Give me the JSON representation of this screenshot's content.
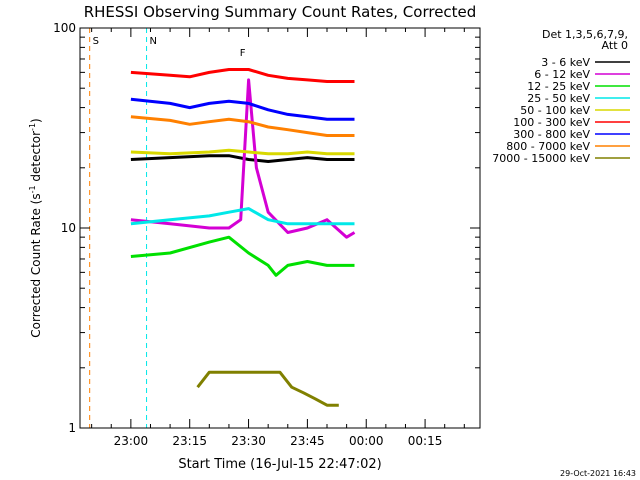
{
  "chart_data": {
    "type": "line",
    "title": "RHESSI Observing Summary Count Rates, Corrected",
    "xlabel": "Start Time (16-Jul-15 22:47:02)",
    "ylabel": "Corrected Count Rate (s",
    "ylabel_sup1": "-1",
    "ylabel_mid": " detector",
    "ylabel_sup2": "-1",
    "ylabel_end": ")",
    "y_scale": "log",
    "ylim": [
      1,
      100
    ],
    "xlim": [
      "22:47:02",
      "00:29:00"
    ],
    "y_ticks": [
      {
        "value": 1,
        "label": "1"
      },
      {
        "value": 10,
        "label": "10"
      },
      {
        "value": 100,
        "label": "100"
      }
    ],
    "x_ticks": [
      {
        "time": "23:00",
        "label": "23:00"
      },
      {
        "time": "23:15",
        "label": "23:15"
      },
      {
        "time": "23:30",
        "label": "23:30"
      },
      {
        "time": "23:45",
        "label": "23:45"
      },
      {
        "time": "00:00",
        "label": "00:00"
      },
      {
        "time": "00:15",
        "label": "00:15"
      }
    ],
    "legend_header": [
      "Det 1,3,5,6,7,9,",
      "Att 0"
    ],
    "legend_placement": "right",
    "series": [
      {
        "name": "3 - 6 keV",
        "color": "#000000",
        "x": [
          "23:00",
          "23:10",
          "23:20",
          "23:25",
          "23:30",
          "23:35",
          "23:40",
          "23:45",
          "23:50",
          "23:57"
        ],
        "y": [
          22,
          22.5,
          23,
          23,
          22,
          21.5,
          22,
          22.5,
          22,
          22
        ]
      },
      {
        "name": "6 - 12 keV",
        "color": "#d400d4",
        "x": [
          "23:00",
          "23:10",
          "23:20",
          "23:25",
          "23:28",
          "23:30",
          "23:32",
          "23:35",
          "23:40",
          "23:45",
          "23:50",
          "23:55",
          "23:57"
        ],
        "y": [
          11,
          10.5,
          10,
          10,
          11,
          55,
          20,
          12,
          9.5,
          10,
          11,
          9,
          9.5
        ]
      },
      {
        "name": "12 - 25 keV",
        "color": "#00e000",
        "x": [
          "23:00",
          "23:10",
          "23:20",
          "23:25",
          "23:30",
          "23:35",
          "23:37",
          "23:40",
          "23:45",
          "23:50",
          "23:57"
        ],
        "y": [
          7.2,
          7.5,
          8.5,
          9,
          7.5,
          6.5,
          5.8,
          6.5,
          6.8,
          6.5,
          6.5
        ]
      },
      {
        "name": "25 - 50 keV",
        "color": "#00e8e8",
        "x": [
          "23:00",
          "23:10",
          "23:20",
          "23:25",
          "23:30",
          "23:35",
          "23:40",
          "23:45",
          "23:50",
          "23:57"
        ],
        "y": [
          10.5,
          11,
          11.5,
          12,
          12.5,
          11,
          10.5,
          10.5,
          10.5,
          10.5
        ]
      },
      {
        "name": "50 - 100 keV",
        "color": "#d8d800",
        "x": [
          "23:00",
          "23:10",
          "23:20",
          "23:25",
          "23:30",
          "23:35",
          "23:40",
          "23:45",
          "23:50",
          "23:57"
        ],
        "y": [
          24,
          23.5,
          24,
          24.5,
          24,
          23.5,
          23.5,
          24,
          23.5,
          23.5
        ]
      },
      {
        "name": "100 - 300 keV",
        "color": "#ff0000",
        "x": [
          "23:00",
          "23:10",
          "23:15",
          "23:20",
          "23:25",
          "23:30",
          "23:35",
          "23:40",
          "23:45",
          "23:50",
          "23:57"
        ],
        "y": [
          60,
          58,
          57,
          60,
          62,
          62,
          58,
          56,
          55,
          54,
          54
        ]
      },
      {
        "name": "300 - 800 keV",
        "color": "#0000ff",
        "x": [
          "23:00",
          "23:10",
          "23:15",
          "23:20",
          "23:25",
          "23:30",
          "23:35",
          "23:40",
          "23:45",
          "23:50",
          "23:57"
        ],
        "y": [
          44,
          42,
          40,
          42,
          43,
          42,
          39,
          37,
          36,
          35,
          35
        ]
      },
      {
        "name": "800 - 7000 keV",
        "color": "#ff8000",
        "x": [
          "23:00",
          "23:10",
          "23:15",
          "23:20",
          "23:25",
          "23:30",
          "23:35",
          "23:40",
          "23:45",
          "23:50",
          "23:57"
        ],
        "y": [
          36,
          34.5,
          33,
          34,
          35,
          34,
          32,
          31,
          30,
          29,
          29
        ]
      },
      {
        "name": "7000 - 15000 keV",
        "color": "#808000",
        "x": [
          "23:17",
          "23:20",
          "23:23",
          "23:26",
          "23:29",
          "23:32",
          "23:35",
          "23:38",
          "23:41",
          "23:44",
          "23:47",
          "23:50",
          "23:53"
        ],
        "y": [
          1.6,
          1.9,
          1.9,
          1.9,
          1.9,
          1.9,
          1.9,
          1.9,
          1.6,
          1.5,
          1.4,
          1.3,
          1.3
        ]
      }
    ],
    "annotations": [
      {
        "label": "S",
        "time": "22:49:30",
        "color": "#ff8000"
      },
      {
        "label": "N",
        "time": "23:04",
        "color": "#00e8e8"
      },
      {
        "label": "F",
        "time": "23:27",
        "color": "#ff0000"
      }
    ],
    "footer_date": "29-Oct-2021 16:43"
  }
}
